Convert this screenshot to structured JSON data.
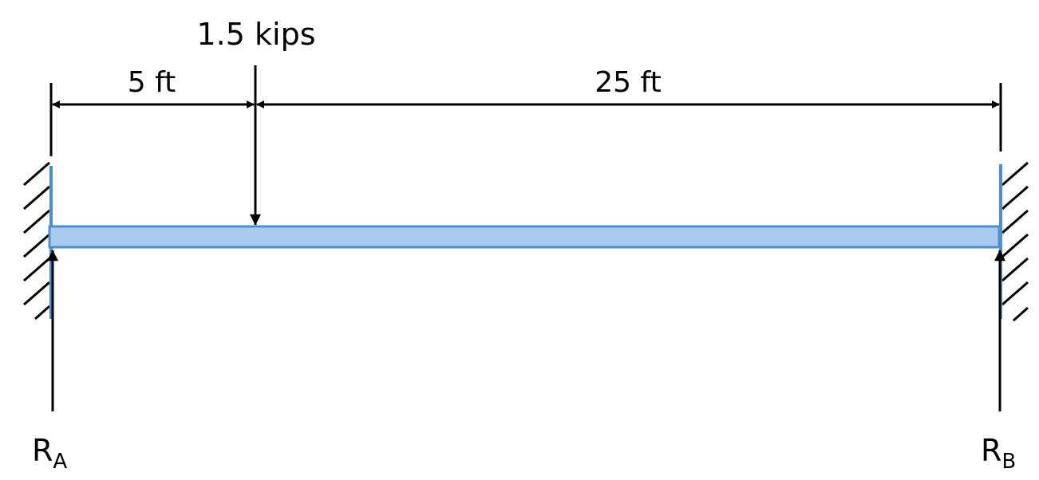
{
  "load": {
    "label": "1.5 kips"
  },
  "dimensions": {
    "left_span": "5 ft",
    "right_span": "25 ft"
  },
  "reactions": {
    "left": {
      "main": "R",
      "sub": "A"
    },
    "right": {
      "main": "R",
      "sub": "B"
    }
  },
  "colors": {
    "beam_fill": "#a9cbec",
    "beam_stroke": "#4a8fd6",
    "wall_stroke": "#4a8fd6",
    "ink": "#000000"
  }
}
